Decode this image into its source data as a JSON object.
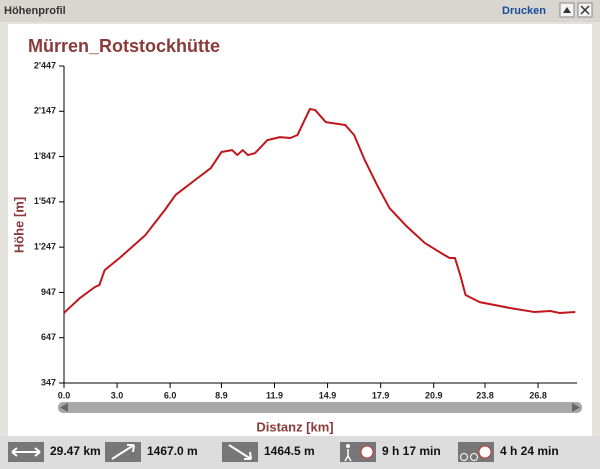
{
  "header": {
    "title": "Höhenprofil",
    "print": "Drucken"
  },
  "chart_data": {
    "type": "line",
    "title": "Mürren_Rotstockhütte",
    "xlabel": "Distanz [km]",
    "ylabel": "Höhe [m]",
    "x": [
      0,
      0.9,
      1.75,
      2.0,
      2.3,
      3.2,
      4.6,
      5.7,
      6.3,
      7.4,
      8.3,
      8.9,
      9.5,
      9.8,
      10.1,
      10.4,
      10.8,
      11.5,
      12.2,
      12.8,
      13.2,
      13.6,
      13.9,
      14.2,
      14.8,
      15.9,
      16.4,
      17.0,
      17.7,
      18.4,
      19.3,
      20.4,
      21.5,
      21.8,
      22.1,
      22.4,
      22.7,
      23.5,
      25.2,
      26.6,
      27.5,
      28.0,
      28.9
    ],
    "series": [
      {
        "name": "Höhe",
        "color": "#c0161c",
        "values": [
          811,
          910,
          983,
          996,
          1095,
          1181,
          1327,
          1493,
          1592,
          1691,
          1771,
          1877,
          1890,
          1857,
          1890,
          1857,
          1870,
          1956,
          1976,
          1970,
          1990,
          2089,
          2162,
          2155,
          2075,
          2056,
          1990,
          1824,
          1658,
          1506,
          1393,
          1274,
          1195,
          1175,
          1175,
          1062,
          930,
          883,
          844,
          817,
          824,
          811,
          817
        ]
      }
    ],
    "xlim": [
      0,
      29.0
    ],
    "ylim": [
      347,
      2447
    ],
    "xticks": [
      {
        "value": 0,
        "label": "0.0"
      },
      {
        "value": 3,
        "label": "3.0"
      },
      {
        "value": 6,
        "label": "6.0"
      },
      {
        "value": 8.9,
        "label": "8.9"
      },
      {
        "value": 11.9,
        "label": "11.9"
      },
      {
        "value": 14.9,
        "label": "14.9"
      },
      {
        "value": 17.9,
        "label": "17.9"
      },
      {
        "value": 20.9,
        "label": "20.9"
      },
      {
        "value": 23.8,
        "label": "23.8"
      },
      {
        "value": 26.8,
        "label": "26.8"
      }
    ],
    "yticks": [
      347,
      647,
      947,
      {
        "value": 1247,
        "label": "1'247"
      },
      {
        "value": 1547,
        "label": "1'547"
      },
      {
        "value": 1847,
        "label": "1'847"
      },
      {
        "value": 2147,
        "label": "2'147"
      },
      {
        "value": 2447,
        "label": "2'447"
      }
    ]
  },
  "stats": [
    "29.47 km",
    "1467.0 m",
    "1464.5 m",
    "9 h 17 min",
    "4 h 24 min"
  ]
}
